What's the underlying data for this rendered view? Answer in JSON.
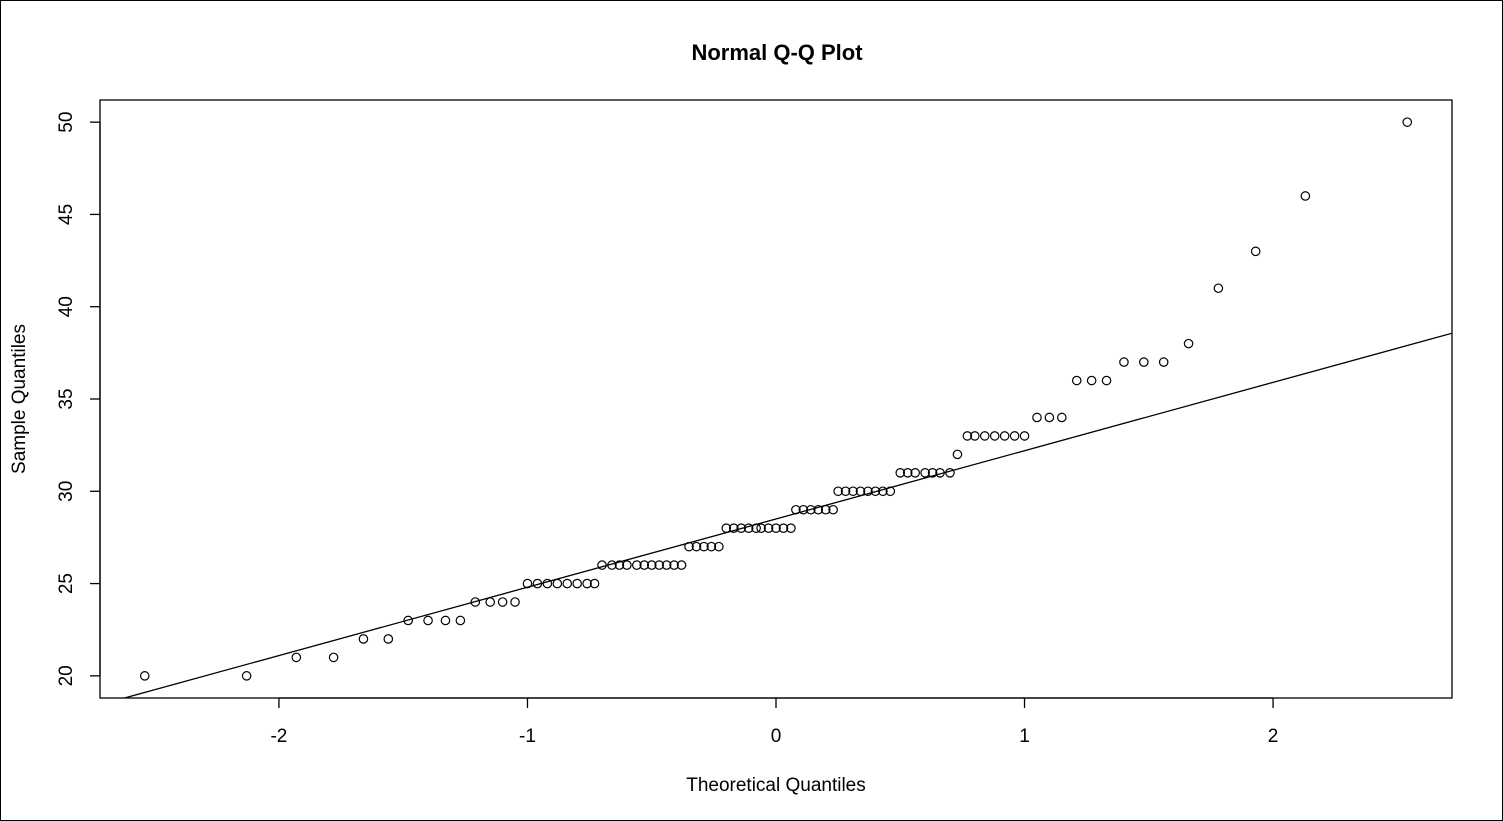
{
  "chart_data": {
    "type": "scatter",
    "title": "Normal Q-Q Plot",
    "xlabel": "Theoretical Quantiles",
    "ylabel": "Sample Quantiles",
    "xlim": [
      -2.72,
      2.72
    ],
    "ylim": [
      18.8,
      51.2
    ],
    "x_ticks": [
      -2,
      -1,
      0,
      1,
      2
    ],
    "x_tick_labels": [
      "-2",
      "-1",
      "0",
      "1",
      "2"
    ],
    "y_ticks": [
      20,
      25,
      30,
      35,
      40,
      45,
      50
    ],
    "y_tick_labels": [
      "20",
      "25",
      "30",
      "35",
      "40",
      "45",
      "50"
    ],
    "grid": false,
    "series": [
      {
        "marker": "open-circle",
        "color": "#000000",
        "points": [
          [
            -2.54,
            20
          ],
          [
            -2.13,
            20
          ],
          [
            -1.93,
            21
          ],
          [
            -1.78,
            21
          ],
          [
            -1.66,
            22
          ],
          [
            -1.56,
            22
          ],
          [
            -1.48,
            23
          ],
          [
            -1.4,
            23
          ],
          [
            -1.33,
            23
          ],
          [
            -1.27,
            23
          ],
          [
            -1.21,
            24
          ],
          [
            -1.15,
            24
          ],
          [
            -1.1,
            24
          ],
          [
            -1.05,
            24
          ],
          [
            -1.0,
            25
          ],
          [
            -0.96,
            25
          ],
          [
            -0.92,
            25
          ],
          [
            -0.88,
            25
          ],
          [
            -0.84,
            25
          ],
          [
            -0.8,
            25
          ],
          [
            -0.76,
            25
          ],
          [
            -0.73,
            25
          ],
          [
            -0.7,
            26
          ],
          [
            -0.66,
            26
          ],
          [
            -0.63,
            26
          ],
          [
            -0.6,
            26
          ],
          [
            -0.56,
            26
          ],
          [
            -0.53,
            26
          ],
          [
            -0.5,
            26
          ],
          [
            -0.47,
            26
          ],
          [
            -0.44,
            26
          ],
          [
            -0.41,
            26
          ],
          [
            -0.38,
            26
          ],
          [
            -0.35,
            27
          ],
          [
            -0.32,
            27
          ],
          [
            -0.29,
            27
          ],
          [
            -0.26,
            27
          ],
          [
            -0.23,
            27
          ],
          [
            -0.2,
            28
          ],
          [
            -0.17,
            28
          ],
          [
            -0.14,
            28
          ],
          [
            -0.11,
            28
          ],
          [
            -0.08,
            28
          ],
          [
            -0.06,
            28
          ],
          [
            -0.03,
            28
          ],
          [
            0.0,
            28
          ],
          [
            0.03,
            28
          ],
          [
            0.06,
            28
          ],
          [
            0.08,
            29
          ],
          [
            0.11,
            29
          ],
          [
            0.14,
            29
          ],
          [
            0.17,
            29
          ],
          [
            0.2,
            29
          ],
          [
            0.23,
            29
          ],
          [
            0.25,
            30
          ],
          [
            0.28,
            30
          ],
          [
            0.31,
            30
          ],
          [
            0.34,
            30
          ],
          [
            0.37,
            30
          ],
          [
            0.4,
            30
          ],
          [
            0.43,
            30
          ],
          [
            0.46,
            30
          ],
          [
            0.5,
            31
          ],
          [
            0.53,
            31
          ],
          [
            0.56,
            31
          ],
          [
            0.6,
            31
          ],
          [
            0.63,
            31
          ],
          [
            0.66,
            31
          ],
          [
            0.7,
            31
          ],
          [
            0.73,
            32
          ],
          [
            0.77,
            33
          ],
          [
            0.8,
            33
          ],
          [
            0.84,
            33
          ],
          [
            0.88,
            33
          ],
          [
            0.92,
            33
          ],
          [
            0.96,
            33
          ],
          [
            1.0,
            33
          ],
          [
            1.05,
            34
          ],
          [
            1.1,
            34
          ],
          [
            1.15,
            34
          ],
          [
            1.21,
            36
          ],
          [
            1.27,
            36
          ],
          [
            1.33,
            36
          ],
          [
            1.4,
            37
          ],
          [
            1.48,
            37
          ],
          [
            1.56,
            37
          ],
          [
            1.66,
            38
          ],
          [
            1.78,
            41
          ],
          [
            1.93,
            43
          ],
          [
            2.13,
            46
          ],
          [
            2.54,
            50
          ]
        ]
      }
    ],
    "reference_line": {
      "intercept": 28.5,
      "slope": 3.7
    }
  }
}
